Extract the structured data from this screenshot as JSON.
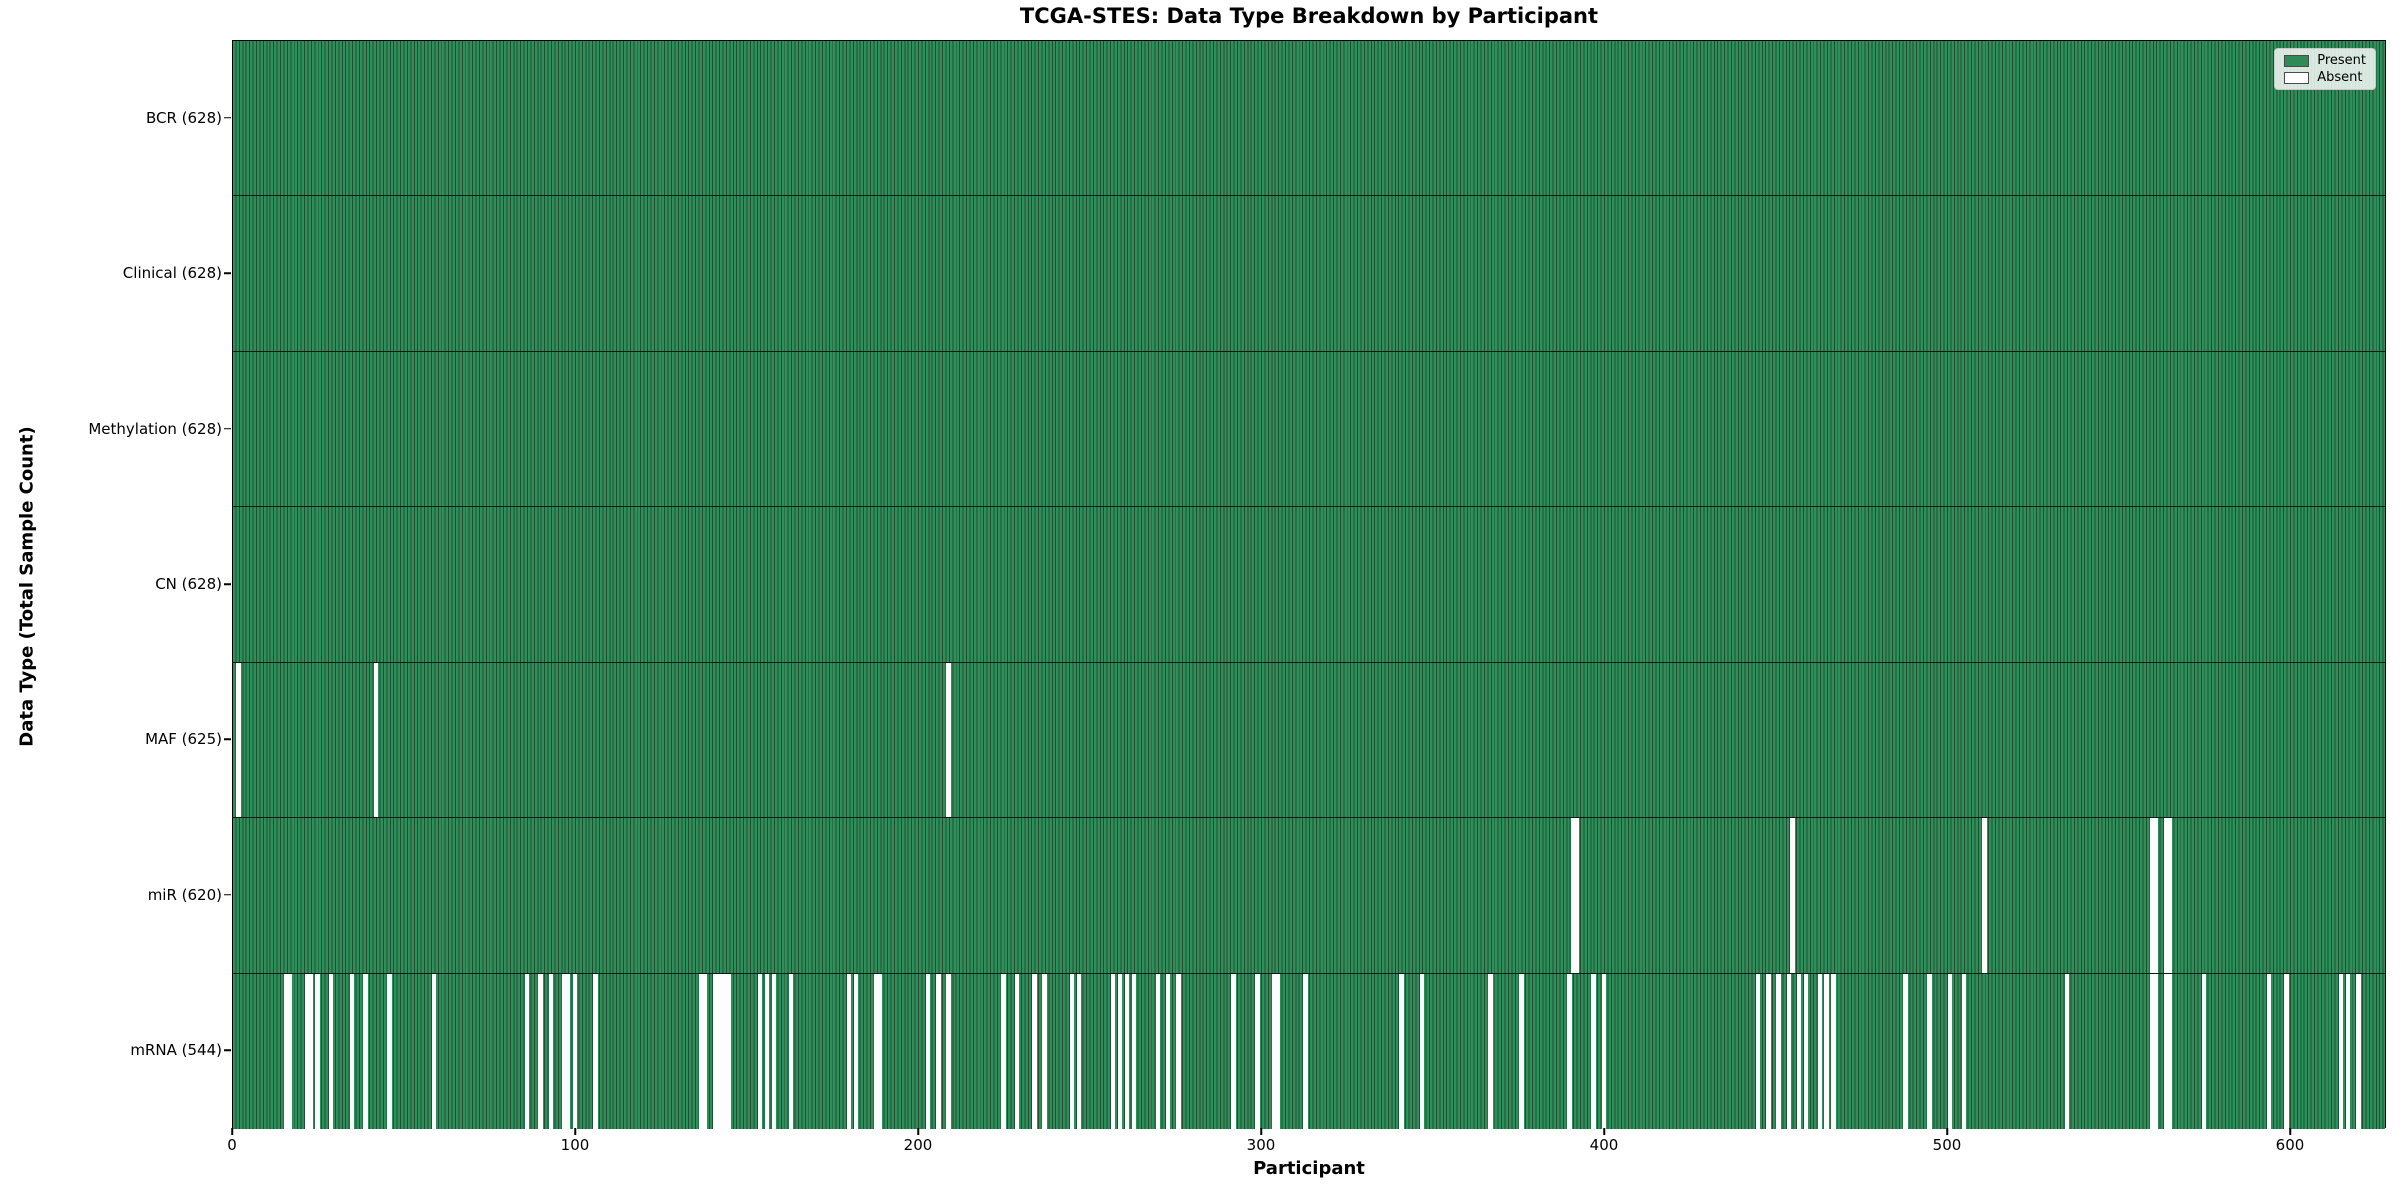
{
  "chart_data": {
    "type": "heatmap",
    "title": "TCGA-STES: Data Type Breakdown by Participant",
    "xlabel": "Participant",
    "ylabel": "Data Type (Total Sample Count)",
    "x_range": [
      0,
      628
    ],
    "xticks": [
      0,
      100,
      200,
      300,
      400,
      500,
      600
    ],
    "n_participants": 628,
    "grid": false,
    "legend_position": "upper right",
    "legend": [
      {
        "label": "Present",
        "color": "#2e8b57"
      },
      {
        "label": "Absent",
        "color": "#ffffff"
      }
    ],
    "colors": {
      "present": "#2e8b57",
      "absent": "#ffffff",
      "bar_edge": "#204e32"
    },
    "rows": [
      {
        "name": "BCR",
        "label": "BCR (628)",
        "total_present": 628,
        "absent_participants": []
      },
      {
        "name": "Clinical",
        "label": "Clinical (628)",
        "total_present": 628,
        "absent_participants": []
      },
      {
        "name": "Methylation",
        "label": "Methylation (628)",
        "total_present": 628,
        "absent_participants": []
      },
      {
        "name": "CN",
        "label": "CN (628)",
        "total_present": 628,
        "absent_participants": []
      },
      {
        "name": "MAF",
        "label": "MAF (625)",
        "total_present": 625,
        "absent_participants": [
          1,
          41,
          208
        ]
      },
      {
        "name": "miR",
        "label": "miR (620)",
        "total_present": 620,
        "absent_participants": [
          390,
          391,
          454,
          510,
          559,
          560,
          563,
          564
        ]
      },
      {
        "name": "mRNA",
        "label": "mRNA (544)",
        "total_present": 544,
        "absent_participants": [
          15,
          16,
          21,
          22,
          24,
          28,
          34,
          38,
          45,
          58,
          85,
          89,
          92,
          96,
          97,
          99,
          105,
          136,
          137,
          140,
          141,
          142,
          143,
          144,
          153,
          155,
          157,
          162,
          179,
          181,
          187,
          188,
          202,
          205,
          208,
          224,
          228,
          233,
          236,
          244,
          246,
          256,
          258,
          260,
          262,
          269,
          272,
          275,
          291,
          298,
          303,
          304,
          312,
          340,
          346,
          366,
          375,
          389,
          396,
          399,
          444,
          447,
          450,
          453,
          456,
          458,
          462,
          464,
          466,
          487,
          494,
          500,
          504,
          534,
          559,
          560,
          563,
          564,
          574,
          593,
          598,
          614,
          616,
          619
        ]
      }
    ]
  }
}
